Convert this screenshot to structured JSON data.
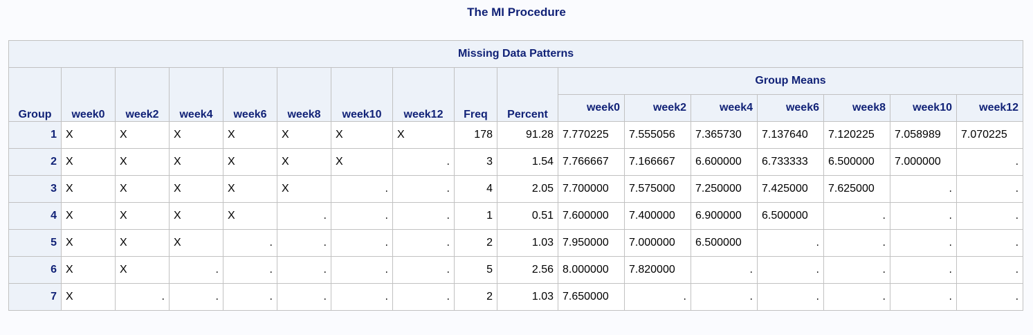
{
  "procedure_title": "The MI Procedure",
  "table": {
    "caption": "Missing Data Patterns",
    "group_means_label": "Group Means",
    "left_headers": [
      "Group",
      "week0",
      "week2",
      "week4",
      "week6",
      "week8",
      "week10",
      "week12",
      "Freq",
      "Percent"
    ],
    "means_headers": [
      "week0",
      "week2",
      "week4",
      "week6",
      "week8",
      "week10",
      "week12"
    ],
    "rows": [
      {
        "group": "1",
        "pattern": [
          "X",
          "X",
          "X",
          "X",
          "X",
          "X",
          "X"
        ],
        "freq": "178",
        "percent": "91.28",
        "means": [
          "7.770225",
          "7.555056",
          "7.365730",
          "7.137640",
          "7.120225",
          "7.058989",
          "7.070225"
        ]
      },
      {
        "group": "2",
        "pattern": [
          "X",
          "X",
          "X",
          "X",
          "X",
          "X",
          "."
        ],
        "freq": "3",
        "percent": "1.54",
        "means": [
          "7.766667",
          "7.166667",
          "6.600000",
          "6.733333",
          "6.500000",
          "7.000000",
          "."
        ]
      },
      {
        "group": "3",
        "pattern": [
          "X",
          "X",
          "X",
          "X",
          "X",
          ".",
          "."
        ],
        "freq": "4",
        "percent": "2.05",
        "means": [
          "7.700000",
          "7.575000",
          "7.250000",
          "7.425000",
          "7.625000",
          ".",
          "."
        ]
      },
      {
        "group": "4",
        "pattern": [
          "X",
          "X",
          "X",
          "X",
          ".",
          ".",
          "."
        ],
        "freq": "1",
        "percent": "0.51",
        "means": [
          "7.600000",
          "7.400000",
          "6.900000",
          "6.500000",
          ".",
          ".",
          "."
        ]
      },
      {
        "group": "5",
        "pattern": [
          "X",
          "X",
          "X",
          ".",
          ".",
          ".",
          "."
        ],
        "freq": "2",
        "percent": "1.03",
        "means": [
          "7.950000",
          "7.000000",
          "6.500000",
          ".",
          ".",
          ".",
          "."
        ]
      },
      {
        "group": "6",
        "pattern": [
          "X",
          "X",
          ".",
          ".",
          ".",
          ".",
          "."
        ],
        "freq": "5",
        "percent": "2.56",
        "means": [
          "8.000000",
          "7.820000",
          ".",
          ".",
          ".",
          ".",
          "."
        ]
      },
      {
        "group": "7",
        "pattern": [
          "X",
          ".",
          ".",
          ".",
          ".",
          ".",
          "."
        ],
        "freq": "2",
        "percent": "1.03",
        "means": [
          "7.650000",
          ".",
          ".",
          ".",
          ".",
          ".",
          "."
        ]
      }
    ]
  }
}
